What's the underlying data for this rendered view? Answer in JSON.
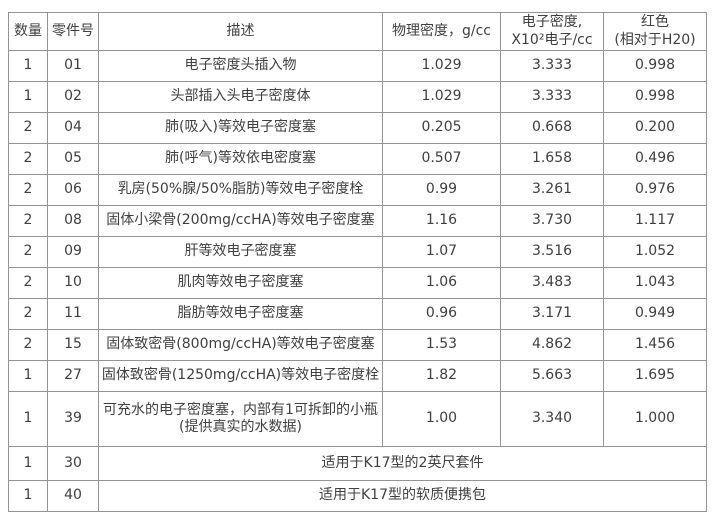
{
  "page": {
    "background_color": "#ffffff",
    "text_color": "#404040",
    "border_color": "#949494"
  },
  "table": {
    "headers": {
      "qty": "数量",
      "part": "零件号",
      "desc": "描述",
      "phys": "物理密度，g/cc",
      "elec": "电子密度,\nX10²电子/cc",
      "red": "红色\n(相对于H20)"
    },
    "rows": [
      {
        "qty": "1",
        "part": "01",
        "desc": "电子密度头插入物",
        "phys": "1.029",
        "elec": "3.333",
        "red": "0.998"
      },
      {
        "qty": "1",
        "part": "02",
        "desc": "头部插入头电子密度体",
        "phys": "1.029",
        "elec": "3.333",
        "red": "0.998"
      },
      {
        "qty": "2",
        "part": "04",
        "desc": "肺(吸入)等效电子密度塞",
        "phys": "0.205",
        "elec": "0.668",
        "red": "0.200"
      },
      {
        "qty": "2",
        "part": "05",
        "desc": "肺(呼气)等效依电密度塞",
        "phys": "0.507",
        "elec": "1.658",
        "red": "0.496"
      },
      {
        "qty": "2",
        "part": "06",
        "desc": "乳房(50%腺/50%脂肪)等效电子密度栓",
        "phys": "0.99",
        "elec": "3.261",
        "red": "0.976"
      },
      {
        "qty": "2",
        "part": "08",
        "desc": "固体小梁骨(200mg/ccHA)等效电子密度塞",
        "phys": "1.16",
        "elec": "3.730",
        "red": "1.117"
      },
      {
        "qty": "2",
        "part": "09",
        "desc": "肝等效电子密度塞",
        "phys": "1.07",
        "elec": "3.516",
        "red": "1.052"
      },
      {
        "qty": "2",
        "part": "10",
        "desc": "肌肉等效电子密度塞",
        "phys": "1.06",
        "elec": "3.483",
        "red": "1.043"
      },
      {
        "qty": "2",
        "part": "11",
        "desc": "脂肪等效电子密度塞",
        "phys": "0.96",
        "elec": "3.171",
        "red": "0.949"
      },
      {
        "qty": "2",
        "part": "15",
        "desc": "固体致密骨(800mg/ccHA)等效电子密度塞",
        "phys": "1.53",
        "elec": "4.862",
        "red": "1.456"
      },
      {
        "qty": "1",
        "part": "27",
        "desc": "固体致密骨(1250mg/ccHA)等效电子密度栓",
        "phys": "1.82",
        "elec": "5.663",
        "red": "1.695"
      },
      {
        "qty": "1",
        "part": "39",
        "desc": "可充水的电子密度塞，内部有1可拆卸的小瓶\n(提供真实的水数据)",
        "phys": "1.00",
        "elec": "3.340",
        "red": "1.000"
      }
    ],
    "span_rows": [
      {
        "qty": "1",
        "part": "30",
        "desc": "适用于K17型的2英尺套件"
      },
      {
        "qty": "1",
        "part": "40",
        "desc": "适用于K17型的软质便携包"
      }
    ]
  }
}
